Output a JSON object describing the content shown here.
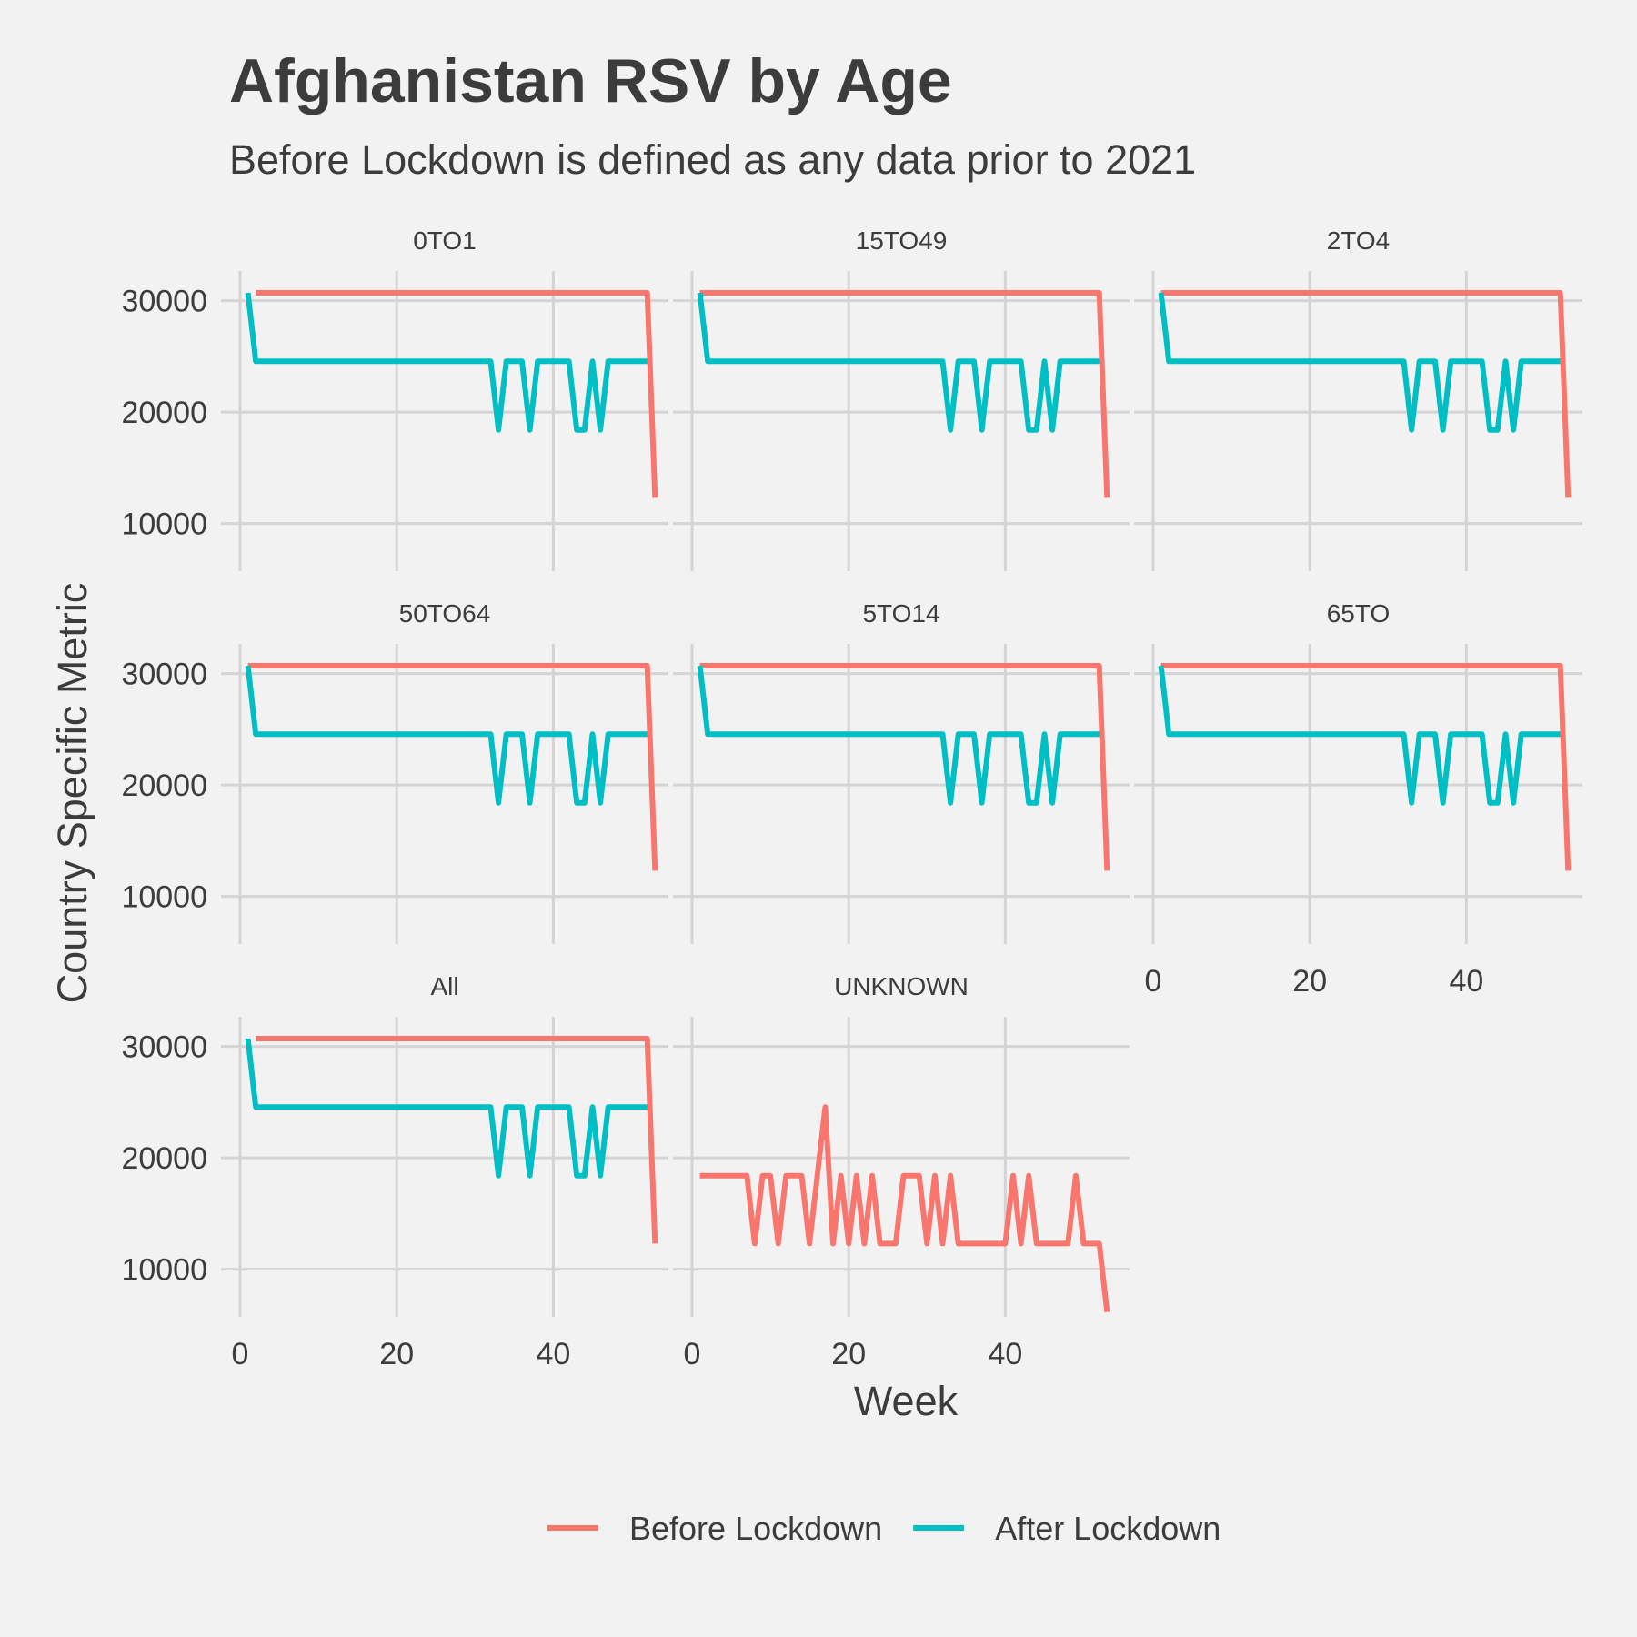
{
  "chart_data": {
    "type": "line",
    "title": "Afghanistan RSV by Age",
    "subtitle": "Before Lockdown is defined as any data prior to 2021",
    "xlabel": "Week",
    "ylabel": "Country Specific Metric",
    "xlim": [
      0,
      54
    ],
    "ylim": [
      5000,
      32000
    ],
    "x_ticks": [
      0,
      20,
      40
    ],
    "y_ticks": [
      10000,
      20000,
      30000
    ],
    "grid": true,
    "legend_position": "bottom",
    "legend": [
      {
        "name": "Before Lockdown",
        "color": "#F8766D"
      },
      {
        "name": "After Lockdown",
        "color": "#00BFC4"
      }
    ],
    "panels": [
      {
        "name": "0TO1",
        "series": [
          {
            "name": "Before Lockdown",
            "color": "#F8766D",
            "x": [
              2,
              52,
              53
            ],
            "y": [
              30700,
              30700,
              12300
            ]
          },
          {
            "name": "After Lockdown",
            "color": "#00BFC4",
            "x": [
              1,
              2,
              32,
              33,
              34,
              36,
              37,
              38,
              42,
              43,
              44,
              45,
              46,
              47,
              52
            ],
            "y": [
              30700,
              24550,
              24550,
              18400,
              24550,
              24550,
              18400,
              24550,
              24550,
              18400,
              18400,
              24550,
              18400,
              24550,
              24550
            ]
          }
        ]
      },
      {
        "name": "15TO49",
        "series": [
          {
            "name": "Before Lockdown",
            "color": "#F8766D",
            "x": [
              1,
              52,
              53
            ],
            "y": [
              30700,
              30700,
              12300
            ]
          },
          {
            "name": "After Lockdown",
            "color": "#00BFC4",
            "x": [
              1,
              2,
              32,
              33,
              34,
              36,
              37,
              38,
              42,
              43,
              44,
              45,
              46,
              47,
              52
            ],
            "y": [
              30700,
              24550,
              24550,
              18400,
              24550,
              24550,
              18400,
              24550,
              24550,
              18400,
              18400,
              24550,
              18400,
              24550,
              24550
            ]
          }
        ]
      },
      {
        "name": "2TO4",
        "series": [
          {
            "name": "Before Lockdown",
            "color": "#F8766D",
            "x": [
              1,
              52,
              53
            ],
            "y": [
              30700,
              30700,
              12300
            ]
          },
          {
            "name": "After Lockdown",
            "color": "#00BFC4",
            "x": [
              1,
              2,
              32,
              33,
              34,
              36,
              37,
              38,
              42,
              43,
              44,
              45,
              46,
              47,
              52
            ],
            "y": [
              30700,
              24550,
              24550,
              18400,
              24550,
              24550,
              18400,
              24550,
              24550,
              18400,
              18400,
              24550,
              18400,
              24550,
              24550
            ]
          }
        ]
      },
      {
        "name": "50TO64",
        "series": [
          {
            "name": "Before Lockdown",
            "color": "#F8766D",
            "x": [
              1,
              52,
              53
            ],
            "y": [
              30700,
              30700,
              12300
            ]
          },
          {
            "name": "After Lockdown",
            "color": "#00BFC4",
            "x": [
              1,
              2,
              32,
              33,
              34,
              36,
              37,
              38,
              42,
              43,
              44,
              45,
              46,
              47,
              52
            ],
            "y": [
              30700,
              24550,
              24550,
              18400,
              24550,
              24550,
              18400,
              24550,
              24550,
              18400,
              18400,
              24550,
              18400,
              24550,
              24550
            ]
          }
        ]
      },
      {
        "name": "5TO14",
        "series": [
          {
            "name": "Before Lockdown",
            "color": "#F8766D",
            "x": [
              1,
              52,
              53
            ],
            "y": [
              30700,
              30700,
              12300
            ]
          },
          {
            "name": "After Lockdown",
            "color": "#00BFC4",
            "x": [
              1,
              2,
              32,
              33,
              34,
              36,
              37,
              38,
              42,
              43,
              44,
              45,
              46,
              47,
              52
            ],
            "y": [
              30700,
              24550,
              24550,
              18400,
              24550,
              24550,
              18400,
              24550,
              24550,
              18400,
              18400,
              24550,
              18400,
              24550,
              24550
            ]
          }
        ]
      },
      {
        "name": "65TO",
        "series": [
          {
            "name": "Before Lockdown",
            "color": "#F8766D",
            "x": [
              1,
              52,
              53
            ],
            "y": [
              30700,
              30700,
              12300
            ]
          },
          {
            "name": "After Lockdown",
            "color": "#00BFC4",
            "x": [
              1,
              2,
              32,
              33,
              34,
              36,
              37,
              38,
              42,
              43,
              44,
              45,
              46,
              47,
              52
            ],
            "y": [
              30700,
              24550,
              24550,
              18400,
              24550,
              24550,
              18400,
              24550,
              24550,
              18400,
              18400,
              24550,
              18400,
              24550,
              24550
            ]
          }
        ]
      },
      {
        "name": "All",
        "series": [
          {
            "name": "Before Lockdown",
            "color": "#F8766D",
            "x": [
              2,
              52,
              53
            ],
            "y": [
              30700,
              30700,
              12300
            ]
          },
          {
            "name": "After Lockdown",
            "color": "#00BFC4",
            "x": [
              1,
              2,
              32,
              33,
              34,
              36,
              37,
              38,
              42,
              43,
              44,
              45,
              46,
              47,
              52
            ],
            "y": [
              30700,
              24550,
              24550,
              18400,
              24550,
              24550,
              18400,
              24550,
              24550,
              18400,
              18400,
              24550,
              18400,
              24550,
              24550
            ]
          }
        ]
      },
      {
        "name": "UNKNOWN",
        "series": [
          {
            "name": "Before Lockdown",
            "color": "#F8766D",
            "x": [
              1,
              7,
              8,
              9,
              10,
              11,
              12,
              14,
              15,
              17,
              18,
              19,
              20,
              21,
              22,
              23,
              24,
              26,
              27,
              29,
              30,
              31,
              32,
              33,
              34,
              40,
              41,
              42,
              43,
              44,
              48,
              49,
              50,
              52,
              53
            ],
            "y": [
              18400,
              18400,
              12300,
              18400,
              18400,
              12300,
              18400,
              18400,
              12300,
              24550,
              12300,
              18400,
              12300,
              18400,
              12300,
              18400,
              12300,
              12300,
              18400,
              18400,
              12300,
              18400,
              12300,
              18400,
              12300,
              12300,
              18400,
              12300,
              18400,
              12300,
              12300,
              18400,
              12300,
              12300,
              6150
            ]
          }
        ]
      }
    ]
  }
}
